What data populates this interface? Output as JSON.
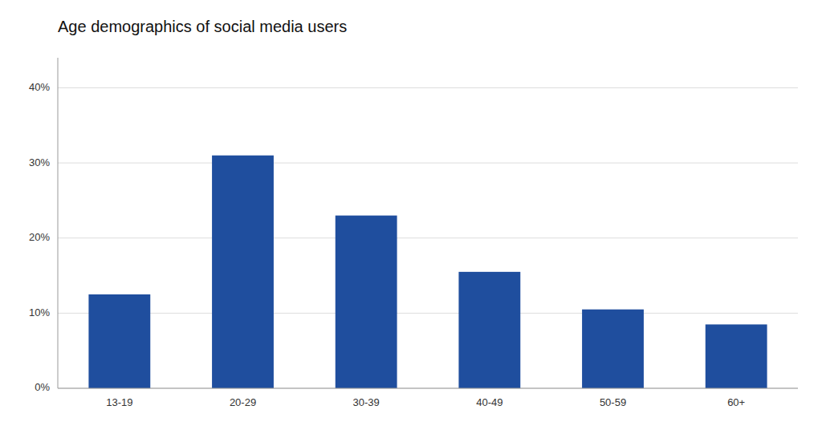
{
  "chart_data": {
    "type": "bar",
    "title": "Age demographics of social media users",
    "categories": [
      "13-19",
      "20-29",
      "30-39",
      "40-49",
      "50-59",
      "60+"
    ],
    "values": [
      12.5,
      31.0,
      23.0,
      15.5,
      10.5,
      8.5
    ],
    "color": "#1f4e9e",
    "ylim": [
      0,
      44
    ],
    "yticks": [
      {
        "value": 0,
        "label": "0%"
      },
      {
        "value": 10,
        "label": "10%"
      },
      {
        "value": 20,
        "label": "20%"
      },
      {
        "value": 30,
        "label": "30%"
      },
      {
        "value": 40,
        "label": "40%"
      }
    ],
    "grid": true
  }
}
